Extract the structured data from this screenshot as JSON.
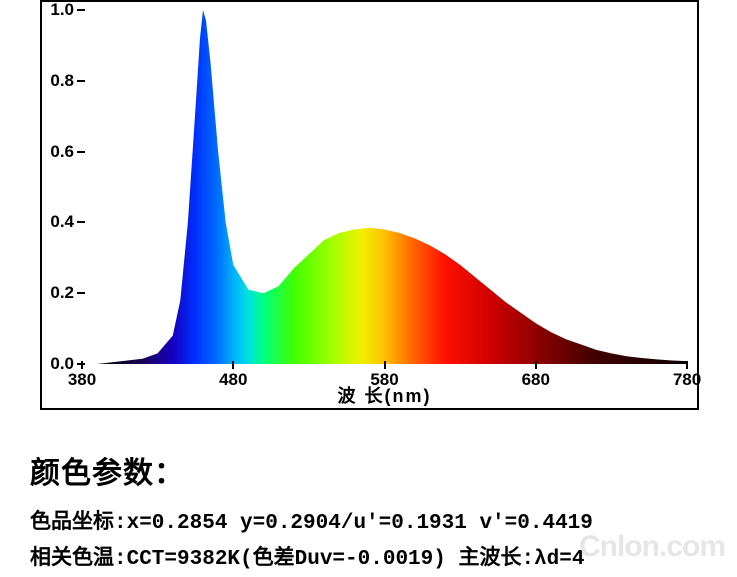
{
  "chart": {
    "type": "area-spectrum",
    "xlim": [
      380,
      780
    ],
    "ylim": [
      0,
      1.0
    ],
    "xtick_step": 100,
    "ytick_step": 0.2,
    "x_ticks": [
      380,
      480,
      580,
      680,
      780
    ],
    "y_ticks": [
      0.0,
      0.2,
      0.4,
      0.6,
      0.8,
      1.0
    ],
    "y_labels": [
      "0.0",
      "0.2",
      "0.4",
      "0.6",
      "0.8",
      "1.0"
    ],
    "x_labels": [
      "380",
      "480",
      "580",
      "680",
      "780"
    ],
    "x_axis_title": "波 长(nm)",
    "background_color": "#ffffff",
    "border_color": "#000000",
    "tick_fontsize": 17,
    "axis_title_fontsize": 18,
    "curve": [
      [
        380,
        0.0
      ],
      [
        390,
        0.0
      ],
      [
        400,
        0.005
      ],
      [
        410,
        0.01
      ],
      [
        420,
        0.015
      ],
      [
        430,
        0.03
      ],
      [
        440,
        0.08
      ],
      [
        445,
        0.18
      ],
      [
        450,
        0.4
      ],
      [
        455,
        0.72
      ],
      [
        458,
        0.92
      ],
      [
        460,
        1.0
      ],
      [
        462,
        0.97
      ],
      [
        465,
        0.85
      ],
      [
        470,
        0.6
      ],
      [
        475,
        0.4
      ],
      [
        480,
        0.28
      ],
      [
        490,
        0.21
      ],
      [
        500,
        0.2
      ],
      [
        510,
        0.22
      ],
      [
        520,
        0.27
      ],
      [
        530,
        0.31
      ],
      [
        540,
        0.35
      ],
      [
        550,
        0.37
      ],
      [
        560,
        0.38
      ],
      [
        570,
        0.385
      ],
      [
        580,
        0.38
      ],
      [
        590,
        0.37
      ],
      [
        600,
        0.355
      ],
      [
        610,
        0.335
      ],
      [
        620,
        0.31
      ],
      [
        630,
        0.28
      ],
      [
        640,
        0.245
      ],
      [
        650,
        0.21
      ],
      [
        660,
        0.175
      ],
      [
        670,
        0.145
      ],
      [
        680,
        0.115
      ],
      [
        690,
        0.09
      ],
      [
        700,
        0.07
      ],
      [
        710,
        0.055
      ],
      [
        720,
        0.04
      ],
      [
        730,
        0.03
      ],
      [
        740,
        0.022
      ],
      [
        750,
        0.017
      ],
      [
        760,
        0.013
      ],
      [
        770,
        0.01
      ],
      [
        780,
        0.008
      ]
    ],
    "spectrum_stops": [
      [
        380,
        "#020005"
      ],
      [
        400,
        "#0a0018"
      ],
      [
        420,
        "#1a0055"
      ],
      [
        440,
        "#1500c0"
      ],
      [
        455,
        "#0030ff"
      ],
      [
        470,
        "#0070ff"
      ],
      [
        480,
        "#00b0ff"
      ],
      [
        490,
        "#00e0e0"
      ],
      [
        500,
        "#00ff80"
      ],
      [
        520,
        "#40ff00"
      ],
      [
        545,
        "#a0ff00"
      ],
      [
        565,
        "#f0f000"
      ],
      [
        580,
        "#ffc000"
      ],
      [
        600,
        "#ff6000"
      ],
      [
        620,
        "#ff1000"
      ],
      [
        650,
        "#d00000"
      ],
      [
        680,
        "#900000"
      ],
      [
        720,
        "#400000"
      ],
      [
        780,
        "#100000"
      ]
    ]
  },
  "text": {
    "heading": "颜色参数：",
    "line1": "色品坐标:x=0.2854  y=0.2904/u'=0.1931 v'=0.4419",
    "line2": "相关色温:CCT=9382K(色差Duv=-0.0019) 主波长:λd=4"
  },
  "watermark": "Cnlon.com"
}
